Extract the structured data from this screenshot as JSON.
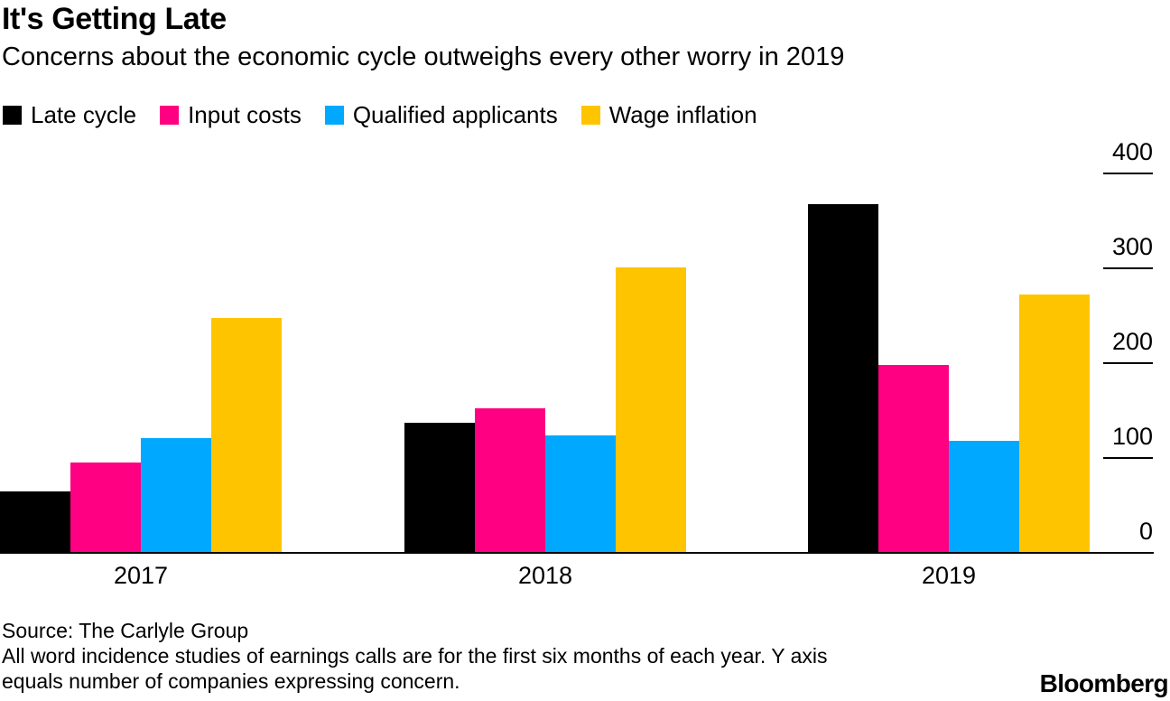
{
  "header": {
    "title": "It's Getting Late",
    "subtitle": "Concerns about the economic cycle outweighs every other worry in 2019"
  },
  "chart_data": {
    "type": "bar",
    "title": "It's Getting Late",
    "subtitle": "Concerns about the economic cycle outweighs every other worry in 2019",
    "categories": [
      "2017",
      "2018",
      "2019"
    ],
    "series": [
      {
        "name": "Late cycle",
        "color": "#000000",
        "values": [
          64,
          136,
          367
        ]
      },
      {
        "name": "Input costs",
        "color": "#FF0082",
        "values": [
          94,
          151,
          197
        ]
      },
      {
        "name": "Qualified applicants",
        "color": "#00A8FF",
        "values": [
          120,
          123,
          117
        ]
      },
      {
        "name": "Wage inflation",
        "color": "#FFC400",
        "values": [
          247,
          300,
          271
        ]
      }
    ],
    "xlabel": "",
    "ylabel": "",
    "ylim": [
      0,
      400
    ],
    "yticks": [
      0,
      100,
      200,
      300,
      400
    ],
    "y_axis_side": "right",
    "legend_position": "top",
    "grid": false
  },
  "footer": {
    "source": "Source: The Carlyle Group",
    "note_line1": "All word incidence studies of earnings calls are for the first six months of each year. Y axis",
    "note_line2": "equals number of companies expressing concern.",
    "brand": "Bloomberg"
  }
}
